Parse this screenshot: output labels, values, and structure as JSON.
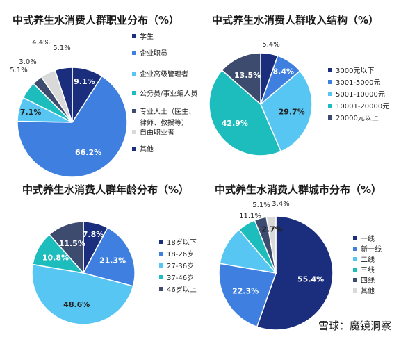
{
  "watermark": "雪球：魔镜洞察",
  "palette": {
    "navy": "#1a2e7d",
    "blue": "#3e7fe0",
    "skyblue": "#57c6f2",
    "teal": "#1dbdbd",
    "slate": "#3d4b6e",
    "gray": "#d9d9d9"
  },
  "chart_data": [
    {
      "type": "pie",
      "title": "中式养生水消费人群职业分布（%）",
      "labels_inside": [
        true,
        true,
        true,
        false,
        false,
        false,
        false
      ],
      "slices": [
        {
          "name": "学生",
          "value": 9.1,
          "label": "9.1%",
          "color": "#1a2e7d"
        },
        {
          "name": "企业职员",
          "value": 66.2,
          "label": "66.2%",
          "color": "#3e7fe0"
        },
        {
          "name": "企业高级管理者",
          "value": 7.1,
          "label": "7.1%",
          "color": "#57c6f2"
        },
        {
          "name": "公务员/事业编人员",
          "value": 5.1,
          "label": "5.1%",
          "color": "#1dbdbd"
        },
        {
          "name": "专业人士（医生、律师、教授等）",
          "value": 3.0,
          "label": "3.0%",
          "color": "#3d4b6e"
        },
        {
          "name": "自由职业者",
          "value": 4.4,
          "label": "4.4%",
          "color": "#d9d9d9"
        },
        {
          "name": "其他",
          "value": 5.1,
          "label": "5.1%",
          "color": "#1a2e7d"
        }
      ],
      "legend": [
        "学生",
        "企业职员",
        "企业高级管理者",
        "公务员/事业编人员",
        "专业人士（医生、",
        "律师、教授等）",
        "自由职业者",
        "其他"
      ]
    },
    {
      "type": "pie",
      "title": "中式养生水消费人群收入结构（%）",
      "slices": [
        {
          "name": "3000元以下",
          "value": 5.4,
          "label": "5.4%",
          "color": "#1a2e7d"
        },
        {
          "name": "3001-5000元",
          "value": 8.4,
          "label": "8.4%",
          "color": "#3e7fe0"
        },
        {
          "name": "5001-10000元",
          "value": 29.7,
          "label": "29.7%",
          "color": "#57c6f2"
        },
        {
          "name": "10001-20000元",
          "value": 42.9,
          "label": "42.9%",
          "color": "#1dbdbd"
        },
        {
          "name": "20000元以上",
          "value": 13.5,
          "label": "13.5%",
          "color": "#3d4b6e"
        }
      ]
    },
    {
      "type": "pie",
      "title": "中式养生水消费人群年龄分布（%）",
      "slices": [
        {
          "name": "18岁以下",
          "value": 7.8,
          "label": "7.8%",
          "color": "#1a2e7d"
        },
        {
          "name": "18-26岁",
          "value": 21.3,
          "label": "21.3%",
          "color": "#3e7fe0"
        },
        {
          "name": "27-36岁",
          "value": 48.6,
          "label": "48.6%",
          "color": "#57c6f2"
        },
        {
          "name": "37-46岁",
          "value": 10.8,
          "label": "10.8%",
          "color": "#1dbdbd"
        },
        {
          "name": "46岁以上",
          "value": 11.5,
          "label": "11.5%",
          "color": "#3d4b6e"
        }
      ]
    },
    {
      "type": "pie",
      "title": "中式养生水消费人群城市分布（%）",
      "slices": [
        {
          "name": "一线",
          "value": 55.4,
          "label": "55.4%",
          "color": "#1a2e7d"
        },
        {
          "name": "新一线",
          "value": 22.3,
          "label": "22.3%",
          "color": "#3e7fe0"
        },
        {
          "name": "二线",
          "value": 11.1,
          "label": "11.1%",
          "color": "#57c6f2"
        },
        {
          "name": "三线",
          "value": 5.1,
          "label": "5.1%",
          "color": "#1dbdbd"
        },
        {
          "name": "四线",
          "value": 3.4,
          "label": "3.4%",
          "color": "#3d4b6e"
        },
        {
          "name": "其他",
          "value": 2.7,
          "label": "2.7%",
          "color": "#d9d9d9"
        }
      ]
    }
  ]
}
